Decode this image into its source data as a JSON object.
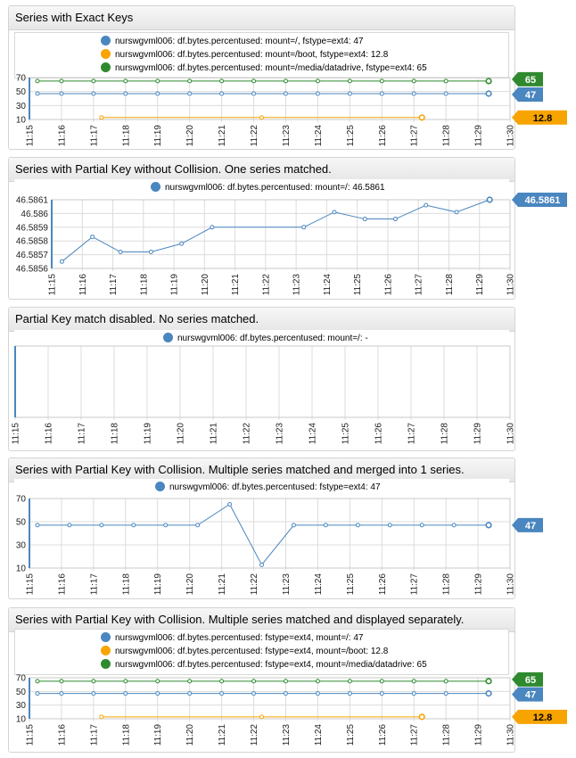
{
  "colors": {
    "blue": "#4a86bf",
    "orange": "#f7a400",
    "green": "#2f8a2f",
    "grid": "#dcdcdc",
    "axis": "#888888"
  },
  "chart_data": [
    {
      "type": "line",
      "title": "Series with Exact Keys",
      "x": [
        "11:15",
        "11:16",
        "11:17",
        "11:18",
        "11:19",
        "11:20",
        "11:21",
        "11:22",
        "11:23",
        "11:24",
        "11:25",
        "11:26",
        "11:27",
        "11:28",
        "11:29",
        "11:30"
      ],
      "yticks": [
        "10",
        "30",
        "50",
        "70"
      ],
      "ylim": [
        10,
        70
      ],
      "series": [
        {
          "name": "nurswgvml006: df.bytes.percentused: mount=/, fstype=ext4: 47",
          "color": "blue",
          "x": [
            "11:15:15",
            "11:16",
            "11:17",
            "11:18",
            "11:19",
            "11:20",
            "11:21",
            "11:22",
            "11:23",
            "11:24",
            "11:25",
            "11:26",
            "11:27",
            "11:28",
            "11:29:20"
          ],
          "values": [
            47,
            47,
            47,
            47,
            47,
            47,
            47,
            47,
            47,
            47,
            47,
            47,
            47,
            47,
            47
          ],
          "last_label": "47"
        },
        {
          "name": "nurswgvml006: df.bytes.percentused: mount=/boot, fstype=ext4: 12.8",
          "color": "orange",
          "x": [
            "11:17:15",
            "11:22:15",
            "11:27:15"
          ],
          "values": [
            12.8,
            12.8,
            12.8
          ],
          "last_label": "12.8"
        },
        {
          "name": "nurswgvml006: df.bytes.percentused: mount=/media/datadrive, fstype=ext4: 65",
          "color": "green",
          "x": [
            "11:15:15",
            "11:16",
            "11:17",
            "11:18",
            "11:19",
            "11:20",
            "11:21",
            "11:22",
            "11:23",
            "11:24",
            "11:25",
            "11:26",
            "11:27",
            "11:28",
            "11:29:20"
          ],
          "values": [
            65,
            65,
            65,
            65,
            65,
            65,
            65,
            65,
            65,
            65,
            65,
            65,
            65,
            65,
            65
          ],
          "last_label": "65"
        }
      ]
    },
    {
      "type": "line",
      "title": "Series with Partial Key without Collision. One series matched.",
      "x": [
        "11:15",
        "11:16",
        "11:17",
        "11:18",
        "11:19",
        "11:20",
        "11:21",
        "11:22",
        "11:23",
        "11:24",
        "11:25",
        "11:26",
        "11:27",
        "11:28",
        "11:29",
        "11:30"
      ],
      "yticks": [
        "46.5856",
        "46.5857",
        "46.5858",
        "46.5859",
        "46.586",
        "46.5861"
      ],
      "ylim": [
        46.5856,
        46.5861
      ],
      "series": [
        {
          "name": "nurswgvml006: df.bytes.percentused: mount=/: 46.5861",
          "color": "blue",
          "x": [
            "11:15:20",
            "11:16:20",
            "11:17:15",
            "11:18:15",
            "11:19:15",
            "11:20:15",
            "11:23:15",
            "11:24:15",
            "11:25:15",
            "11:26:15",
            "11:27:15",
            "11:28:15",
            "11:29:20"
          ],
          "values": [
            46.58565,
            46.58583,
            46.58572,
            46.58572,
            46.58578,
            46.5859,
            46.5859,
            46.58601,
            46.58596,
            46.58596,
            46.58606,
            46.58601,
            46.5861
          ],
          "last_label": "46.5861"
        }
      ]
    },
    {
      "type": "line",
      "title": "Partial Key match disabled. No series matched.",
      "x": [
        "11:15",
        "11:16",
        "11:17",
        "11:18",
        "11:19",
        "11:20",
        "11:21",
        "11:22",
        "11:23",
        "11:24",
        "11:25",
        "11:26",
        "11:27",
        "11:28",
        "11:29",
        "11:30"
      ],
      "yticks": [],
      "series": [
        {
          "name": "nurswgvml006: df.bytes.percentused: mount=/: -",
          "color": "blue",
          "x": [],
          "values": [],
          "last_label": ""
        }
      ]
    },
    {
      "type": "line",
      "title": "Series with Partial Key with Collision. Multiple series matched and merged into 1 series.",
      "x": [
        "11:15",
        "11:16",
        "11:17",
        "11:18",
        "11:19",
        "11:20",
        "11:21",
        "11:22",
        "11:23",
        "11:24",
        "11:25",
        "11:26",
        "11:27",
        "11:28",
        "11:29",
        "11:30"
      ],
      "yticks": [
        "10",
        "30",
        "50",
        "70"
      ],
      "ylim": [
        10,
        70
      ],
      "series": [
        {
          "name": "nurswgvml006: df.bytes.percentused: fstype=ext4: 47",
          "color": "blue",
          "x": [
            "11:15:15",
            "11:16:15",
            "11:17:15",
            "11:18:15",
            "11:19:15",
            "11:20:15",
            "11:21:15",
            "11:22:15",
            "11:23:15",
            "11:24:15",
            "11:25:15",
            "11:26:15",
            "11:27:15",
            "11:28:15",
            "11:29:20"
          ],
          "values": [
            47,
            47,
            47,
            47,
            47,
            47,
            65,
            12.8,
            47,
            47,
            47,
            47,
            47,
            47,
            47
          ],
          "last_label": "47"
        }
      ]
    },
    {
      "type": "line",
      "title": "Series with Partial Key with Collision. Multiple series matched and displayed separately.",
      "x": [
        "11:15",
        "11:16",
        "11:17",
        "11:18",
        "11:19",
        "11:20",
        "11:21",
        "11:22",
        "11:23",
        "11:24",
        "11:25",
        "11:26",
        "11:27",
        "11:28",
        "11:29",
        "11:30"
      ],
      "yticks": [
        "10",
        "30",
        "50",
        "70"
      ],
      "ylim": [
        10,
        70
      ],
      "series": [
        {
          "name": "nurswgvml006: df.bytes.percentused: fstype=ext4, mount=/: 47",
          "color": "blue",
          "x": [
            "11:15:15",
            "11:16",
            "11:17",
            "11:18",
            "11:19",
            "11:20",
            "11:21",
            "11:22",
            "11:23",
            "11:24",
            "11:25",
            "11:26",
            "11:27",
            "11:28",
            "11:29:20"
          ],
          "values": [
            47,
            47,
            47,
            47,
            47,
            47,
            47,
            47,
            47,
            47,
            47,
            47,
            47,
            47,
            47
          ],
          "last_label": "47"
        },
        {
          "name": "nurswgvml006: df.bytes.percentused: fstype=ext4, mount=/boot: 12.8",
          "color": "orange",
          "x": [
            "11:17:15",
            "11:22:15",
            "11:27:15"
          ],
          "values": [
            12.8,
            12.8,
            12.8
          ],
          "last_label": "12.8"
        },
        {
          "name": "nurswgvml006: df.bytes.percentused: fstype=ext4, mount=/media/datadrive: 65",
          "color": "green",
          "x": [
            "11:15:15",
            "11:16",
            "11:17",
            "11:18",
            "11:19",
            "11:20",
            "11:21",
            "11:22",
            "11:23",
            "11:24",
            "11:25",
            "11:26",
            "11:27",
            "11:28",
            "11:29:20"
          ],
          "values": [
            65,
            65,
            65,
            65,
            65,
            65,
            65,
            65,
            65,
            65,
            65,
            65,
            65,
            65,
            65
          ],
          "last_label": "65"
        }
      ]
    }
  ]
}
